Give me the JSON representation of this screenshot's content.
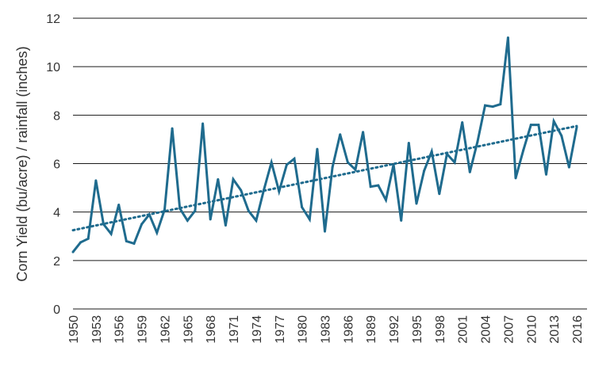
{
  "chart_data": {
    "type": "line",
    "title": "",
    "xlabel": "",
    "ylabel": "Corn Yield (bu/acre) / rainfall (inches)",
    "ylim": [
      0,
      12
    ],
    "yticks": [
      0,
      2,
      4,
      6,
      8,
      10,
      12
    ],
    "xlim": [
      1950,
      2016
    ],
    "xticks": [
      1950,
      1953,
      1956,
      1959,
      1962,
      1965,
      1968,
      1971,
      1974,
      1977,
      1980,
      1983,
      1986,
      1989,
      1992,
      1995,
      1998,
      2001,
      2004,
      2007,
      2010,
      2013,
      2016
    ],
    "grid": true,
    "legend": "none",
    "series": [
      {
        "color": "#1f6b8e",
        "style": "solid",
        "x": [
          1950,
          1951,
          1952,
          1953,
          1954,
          1955,
          1956,
          1957,
          1958,
          1959,
          1960,
          1961,
          1962,
          1963,
          1964,
          1965,
          1966,
          1967,
          1968,
          1969,
          1970,
          1971,
          1972,
          1973,
          1974,
          1975,
          1976,
          1977,
          1978,
          1979,
          1980,
          1981,
          1982,
          1983,
          1984,
          1985,
          1986,
          1987,
          1988,
          1989,
          1990,
          1991,
          1992,
          1993,
          1994,
          1995,
          1996,
          1997,
          1998,
          1999,
          2000,
          2001,
          2002,
          2003,
          2004,
          2005,
          2006,
          2007,
          2008,
          2009,
          2010,
          2011,
          2012,
          2013,
          2014,
          2015,
          2016
        ],
        "values": [
          2.35,
          2.75,
          2.9,
          5.3,
          3.5,
          3.1,
          4.3,
          2.8,
          2.7,
          3.5,
          3.9,
          3.15,
          4.1,
          7.45,
          4.15,
          3.65,
          4.05,
          7.65,
          3.7,
          5.35,
          3.45,
          5.35,
          4.9,
          4.05,
          3.65,
          4.9,
          6.05,
          4.85,
          5.95,
          6.2,
          4.2,
          3.7,
          6.6,
          3.2,
          5.85,
          7.2,
          6.05,
          5.75,
          7.3,
          5.05,
          5.1,
          4.5,
          5.95,
          3.65,
          6.85,
          4.35,
          5.7,
          6.5,
          4.75,
          6.4,
          6.05,
          7.7,
          5.65,
          6.9,
          8.4,
          8.35,
          8.45,
          11.2,
          5.4,
          6.55,
          7.6,
          7.6,
          5.55,
          7.75,
          7.15,
          5.85,
          7.5
        ]
      }
    ],
    "trendline": {
      "color": "#1f6b8e",
      "style": "dotted",
      "start": [
        1950,
        3.25
      ],
      "end": [
        2016,
        7.55
      ]
    }
  }
}
